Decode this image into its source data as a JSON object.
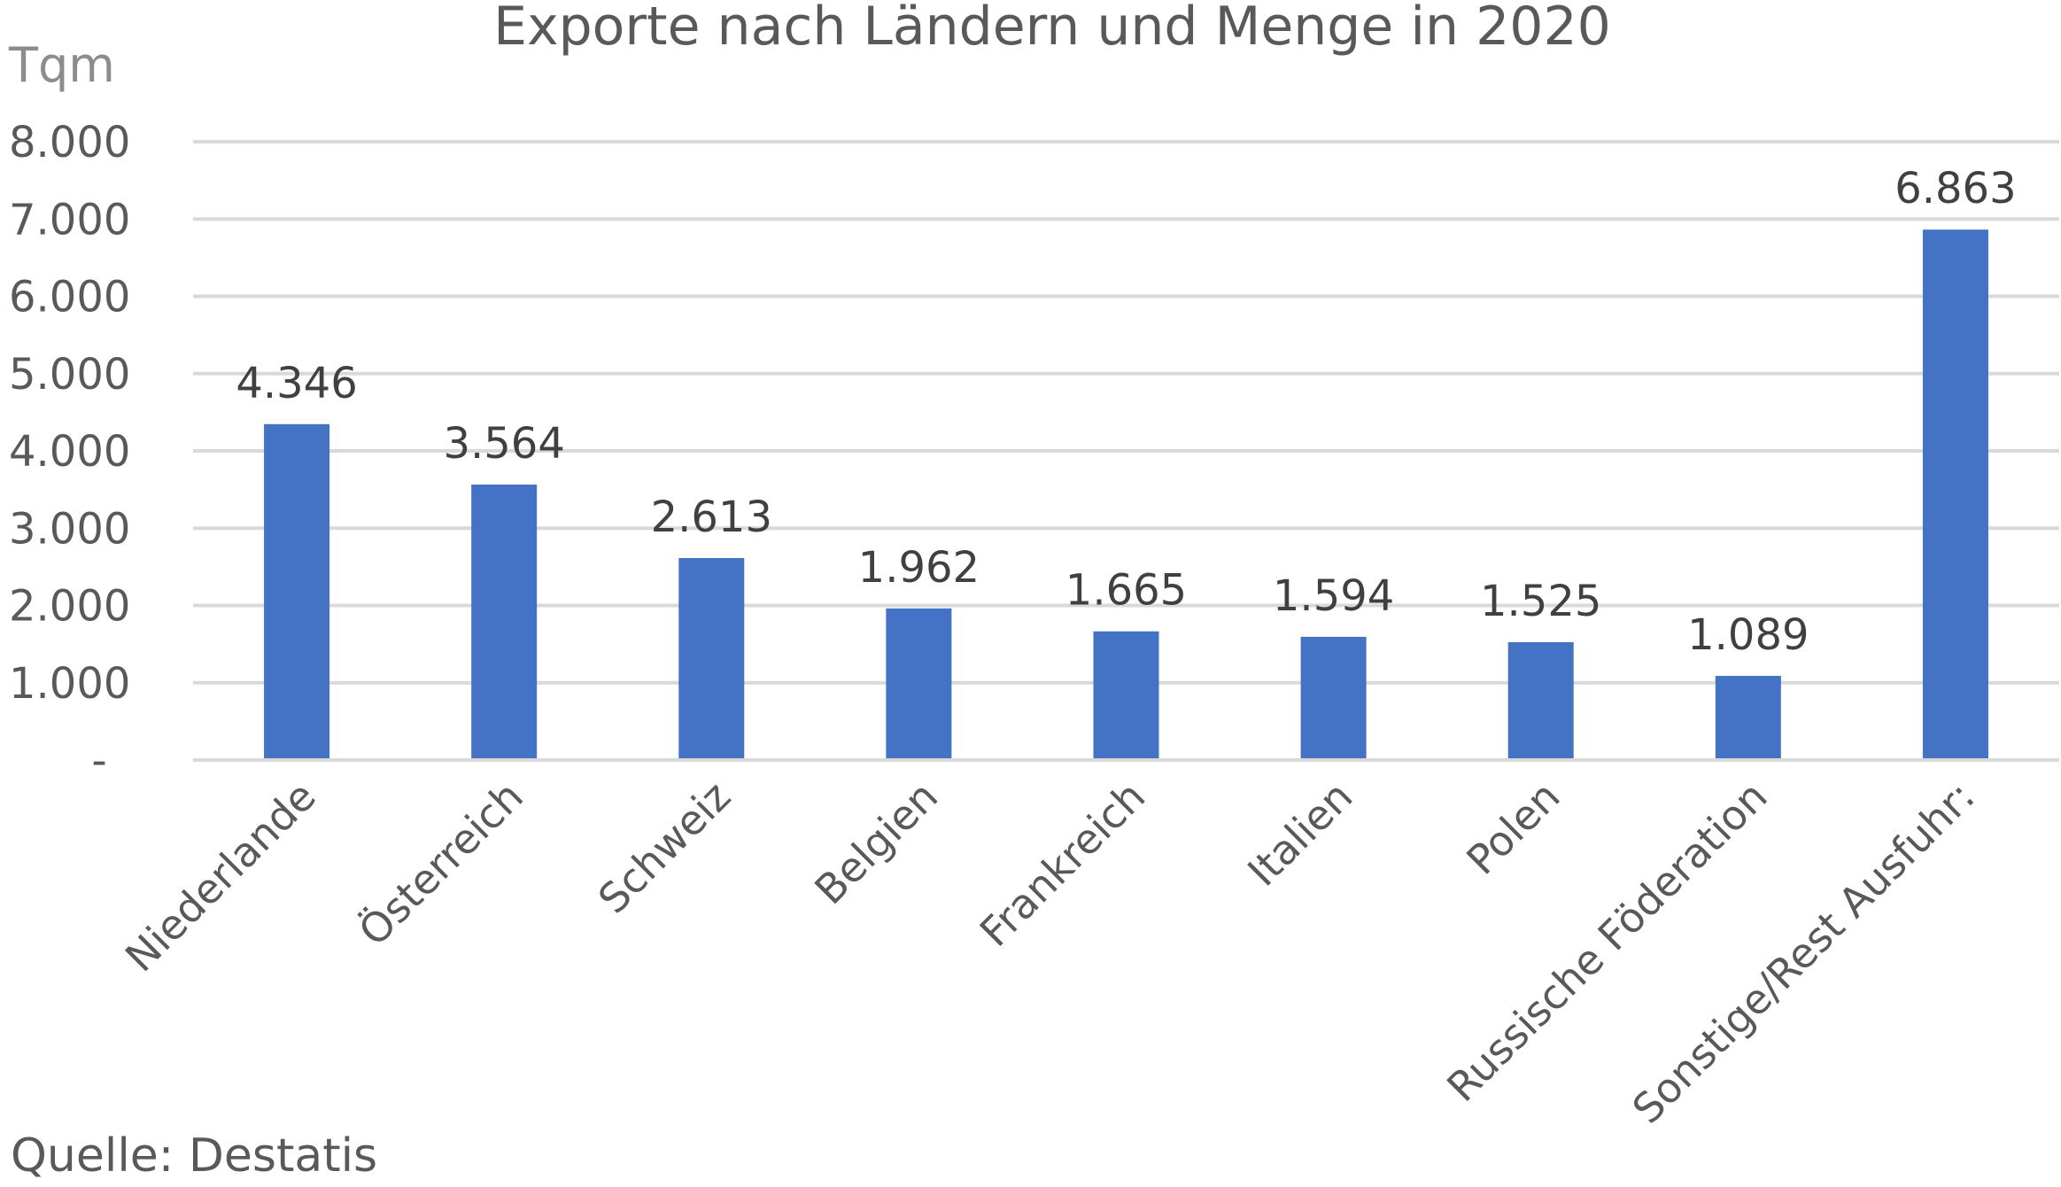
{
  "chart_data": {
    "type": "bar",
    "title": "Exporte nach Ländern und Menge in 2020",
    "ylabel": "Tqm",
    "xlabel": "",
    "categories": [
      "Niederlande",
      "Österreich",
      "Schweiz",
      "Belgien",
      "Frankreich",
      "Italien",
      "Polen",
      "Russische Föderation",
      "Sonstige/Rest Ausfuhr:"
    ],
    "values": [
      4346,
      3564,
      2613,
      1962,
      1665,
      1594,
      1525,
      1089,
      6863
    ],
    "value_labels": [
      "4.346",
      "3.564",
      "2.613",
      "1.962",
      "1.665",
      "1.594",
      "1.525",
      "1.089",
      "6.863"
    ],
    "ylim": [
      0,
      8000
    ],
    "yticks": [
      0,
      1000,
      2000,
      3000,
      4000,
      5000,
      6000,
      7000,
      8000
    ],
    "ytick_labels": [
      "-",
      "1.000",
      "2.000",
      "3.000",
      "4.000",
      "5.000",
      "6.000",
      "7.000",
      "8.000"
    ],
    "grid": true,
    "bar_color": "#4472c4",
    "source": "Quelle: Destatis"
  }
}
